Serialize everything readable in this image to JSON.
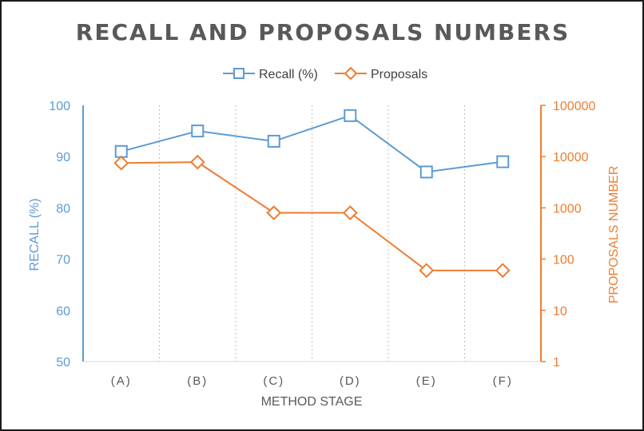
{
  "chart_data": {
    "type": "line",
    "title": "RECALL AND PROPOSALS NUMBERS",
    "xlabel": "METHOD STAGE",
    "categories": [
      "(A)",
      "(B)",
      "(C)",
      "(D)",
      "(E)",
      "(F)"
    ],
    "y_left": {
      "label": "RECALL (%)",
      "range": [
        50,
        100
      ],
      "ticks": [
        "50",
        "60",
        "70",
        "80",
        "90",
        "100"
      ],
      "scale": "linear"
    },
    "y_right": {
      "label": "PROPOSALS NUMBER",
      "range": [
        1,
        100000
      ],
      "ticks": [
        "1",
        "10",
        "100",
        "1000",
        "10000",
        "100000"
      ],
      "scale": "log"
    },
    "series": [
      {
        "name": "Recall (%)",
        "axis": "left",
        "marker": "square",
        "color": "#5b9bd5",
        "values": [
          91,
          95,
          93,
          98,
          87,
          89
        ]
      },
      {
        "name": "Proposals",
        "axis": "right",
        "marker": "diamond",
        "color": "#ed7d31",
        "values": [
          7500,
          7800,
          800,
          800,
          60,
          60
        ]
      }
    ],
    "legend_position": "top-center",
    "grid": "vertical-dotted"
  }
}
